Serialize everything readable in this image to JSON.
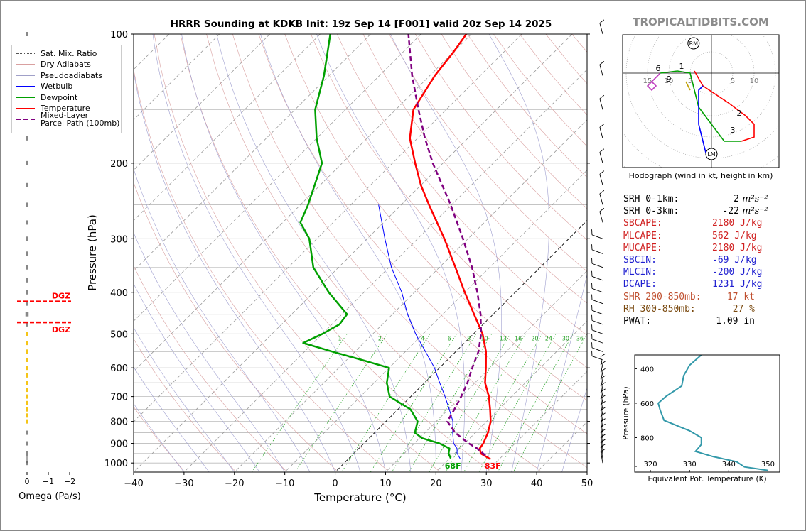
{
  "title": "HRRR Sounding at KDKB Init: 19z Sep 14 [F001] valid 20z Sep 14 2025",
  "credit": "TROPICALTIDBITS.COM",
  "legend": [
    {
      "label": "Sat. Mix. Ratio",
      "color": "#555555",
      "style": "dotted",
      "width": 1
    },
    {
      "label": "Dry Adiabats",
      "color": "#d9a0a0",
      "style": "solid",
      "width": 1
    },
    {
      "label": "Pseudoadiabats",
      "color": "#a0a0c8",
      "style": "solid",
      "width": 1
    },
    {
      "label": "Wetbulb",
      "color": "#0000ff",
      "style": "solid",
      "width": 1
    },
    {
      "label": "Dewpoint",
      "color": "#00a000",
      "style": "solid",
      "width": 2.5
    },
    {
      "label": "Temperature",
      "color": "#ff0000",
      "style": "solid",
      "width": 2.5
    },
    {
      "label": "Mixed-Layer\nParcel Path (100mb)",
      "color": "#800080",
      "style": "dashed",
      "width": 2.5
    }
  ],
  "chart_data": [
    {
      "type": "line",
      "name": "skewt",
      "title": "HRRR Sounding at KDKB Init: 19z Sep 14 [F001] valid 20z Sep 14 2025",
      "xlabel": "Temperature (°C)",
      "ylabel": "Pressure (hPa)",
      "xlim": [
        -40,
        50
      ],
      "ylim": [
        1050,
        100
      ],
      "y_scale": "log",
      "x_ticks": [
        -40,
        -30,
        -20,
        -10,
        0,
        10,
        20,
        30,
        40,
        50
      ],
      "y_ticks": [
        100,
        200,
        300,
        400,
        500,
        600,
        700,
        800,
        900,
        1000
      ],
      "series": [
        {
          "name": "Temperature",
          "color": "#ff0000",
          "width": 2.5,
          "p": [
            980,
            950,
            925,
            900,
            850,
            800,
            750,
            700,
            650,
            600,
            550,
            500,
            450,
            400,
            350,
            300,
            250,
            225,
            200,
            175,
            150,
            125,
            110,
            100
          ],
          "t": [
            28.3,
            25.2,
            24.0,
            23.7,
            22.5,
            20.8,
            18.3,
            15.5,
            12.0,
            9.2,
            6.0,
            1.8,
            -3.8,
            -10.0,
            -16.8,
            -24.7,
            -34.5,
            -40.0,
            -45.5,
            -51.5,
            -56.5,
            -59.0,
            -60.0,
            -61.0
          ]
        },
        {
          "name": "Dewpoint",
          "color": "#00a000",
          "width": 2.5,
          "p": [
            975,
            950,
            925,
            900,
            875,
            850,
            800,
            750,
            700,
            650,
            600,
            575,
            550,
            525,
            500,
            475,
            450,
            400,
            350,
            300,
            275,
            250,
            200,
            175,
            150,
            125,
            100
          ],
          "t": [
            20.2,
            18.8,
            18.0,
            15.0,
            10.5,
            8.0,
            6.3,
            2.5,
            -4.2,
            -7.5,
            -10.0,
            -17.0,
            -24.5,
            -32.0,
            -30.0,
            -28.5,
            -29.0,
            -37.0,
            -45.0,
            -51.5,
            -56.5,
            -58.5,
            -64.0,
            -70.0,
            -76.0,
            -81.0,
            -88.0
          ]
        },
        {
          "name": "Wetbulb",
          "color": "#0000ff",
          "width": 1,
          "p": [
            978,
            950,
            925,
            900,
            850,
            800,
            750,
            700,
            650,
            600,
            550,
            500,
            450,
            400,
            350,
            300,
            250
          ],
          "t": [
            22.2,
            20.5,
            19.5,
            17.8,
            15.5,
            13.3,
            10.2,
            6.8,
            3.0,
            -1.0,
            -6.0,
            -11.5,
            -17.0,
            -22.5,
            -29.5,
            -36.5,
            -44.5
          ]
        },
        {
          "name": "Mixed-Layer Parcel Path (100mb)",
          "color": "#800080",
          "width": 2.5,
          "dash": true,
          "p": [
            960,
            925,
            900,
            850,
            800,
            750,
            700,
            650,
            600,
            550,
            500,
            450,
            400,
            350,
            300,
            250,
            200,
            175,
            150,
            125,
            100
          ],
          "t": [
            26.5,
            23.5,
            20.8,
            16.0,
            12.2,
            11.2,
            10.0,
            8.5,
            6.5,
            4.5,
            1.5,
            -2.5,
            -7.5,
            -13.5,
            -21.0,
            -30.2,
            -42.0,
            -48.5,
            -55.5,
            -63.5,
            -72.5
          ]
        }
      ],
      "surface_labels": [
        {
          "text": "68F",
          "color": "#00a000"
        },
        {
          "text": "83F",
          "color": "#ff0000"
        }
      ],
      "mixing_ratio_labels": [
        "1",
        "2",
        "4",
        "6",
        "8",
        "10",
        "13",
        "16",
        "20",
        "24",
        "30",
        "36"
      ]
    },
    {
      "type": "line",
      "name": "hodograph",
      "xlabel": "Hodograph (wind in kt, height in km)",
      "ring_labels": [
        "15",
        "10",
        "5",
        "5",
        "10"
      ],
      "markers": [
        "RM",
        "LM"
      ],
      "height_labels": [
        "1",
        "2",
        "3",
        "6",
        "9"
      ],
      "segments": [
        {
          "color": "#ff0000",
          "points": [
            [
              -4,
              0.5
            ],
            [
              -2,
              -3
            ],
            [
              4,
              -7
            ],
            [
              8,
              -10
            ],
            [
              10,
              -12
            ],
            [
              10,
              -15
            ],
            [
              7,
              -16
            ]
          ]
        },
        {
          "color": "#00a000",
          "points": [
            [
              7,
              -16
            ],
            [
              3,
              -16
            ],
            [
              0,
              -12
            ],
            [
              -3,
              -8
            ],
            [
              -4,
              -4
            ],
            [
              -5,
              0
            ],
            [
              -8,
              0.5
            ],
            [
              -12,
              0
            ]
          ]
        },
        {
          "color": "#0000ff",
          "points": [
            [
              -2,
              -3
            ],
            [
              -3,
              -4
            ],
            [
              -3,
              -8
            ],
            [
              -3,
              -12
            ],
            [
              -2,
              -16
            ],
            [
              -1,
              -20
            ]
          ]
        },
        {
          "color": "#c040c0",
          "points": [
            [
              -12,
              0
            ],
            [
              -13,
              -1
            ],
            [
              -15,
              -3
            ],
            [
              -14,
              -4
            ],
            [
              -13,
              -3
            ],
            [
              -14,
              -2
            ]
          ]
        },
        {
          "color": "#c0a000",
          "points": [
            [
              -6,
              -2
            ],
            [
              -5,
              -4
            ]
          ]
        }
      ]
    },
    {
      "type": "line",
      "name": "theta-e",
      "xlabel": "Equivalent Pot. Temperature (K)",
      "ylabel": "Pressure (hPa)",
      "xlim": [
        316,
        353
      ],
      "ylim": [
        1000,
        320
      ],
      "x_ticks": [
        320,
        330,
        340,
        350
      ],
      "y_ticks": [
        400,
        600,
        800
      ],
      "series": [
        {
          "name": "theta-e",
          "color": "#3399aa",
          "p": [
            320,
            380,
            440,
            500,
            560,
            600,
            640,
            700,
            760,
            800,
            840,
            880,
            910,
            940,
            970,
            990
          ],
          "t": [
            333.0,
            330.0,
            328.5,
            328.0,
            324.0,
            322.0,
            322.5,
            323.5,
            330.0,
            333.0,
            333.0,
            331.5,
            336.0,
            342.0,
            344.0,
            350.0
          ]
        }
      ]
    },
    {
      "type": "bar",
      "name": "omega",
      "xlabel": "Omega (Pa/s)",
      "x_ticks": [
        "0",
        "−1",
        "−2"
      ],
      "xlim": [
        0.2,
        -2.5
      ],
      "levels_hpa": [
        100,
        150,
        175,
        200,
        225,
        250,
        275,
        300,
        325,
        350,
        375,
        400,
        425,
        450,
        475,
        500,
        525,
        550,
        575,
        600,
        625,
        650,
        675,
        700,
        725,
        750,
        775,
        800,
        850,
        900,
        950,
        1000
      ],
      "values": [
        -0.02,
        -0.05,
        -0.04,
        -0.08,
        -0.1,
        -0.1,
        -0.1,
        -0.1,
        -0.1,
        -0.1,
        -0.1,
        -0.1,
        -0.12,
        -0.15,
        -0.12,
        -0.05,
        -0.02,
        0.0,
        0.0,
        -0.02,
        -0.04,
        -0.06,
        -0.08,
        -0.1,
        -0.12,
        -0.12,
        -0.1,
        -0.05,
        0.0,
        0.0,
        0.0,
        0.0
      ],
      "dgz": [
        {
          "label": "DGZ",
          "p": 420
        },
        {
          "label": "DGZ",
          "p": 470
        }
      ]
    }
  ],
  "indices": [
    {
      "label": "SRH 0-1km:",
      "value": "2",
      "unit": "m²s⁻²",
      "color": "#000000"
    },
    {
      "label": "SRH 0-3km:",
      "value": "-22",
      "unit": "m²s⁻²",
      "color": "#000000"
    },
    {
      "label": "SBCAPE:",
      "value": "2180 J/kg",
      "unit": "",
      "color": "#d02020"
    },
    {
      "label": "MLCAPE:",
      "value": "562 J/kg",
      "unit": "",
      "color": "#d02020"
    },
    {
      "label": "MUCAPE:",
      "value": "2180 J/kg",
      "unit": "",
      "color": "#d02020"
    },
    {
      "label": "SBCIN:",
      "value": "-69 J/kg",
      "unit": "",
      "color": "#2020d0"
    },
    {
      "label": "MLCIN:",
      "value": "-200 J/kg",
      "unit": "",
      "color": "#2020d0"
    },
    {
      "label": "DCAPE:",
      "value": "1231 J/kg",
      "unit": "",
      "color": "#2020d0"
    },
    {
      "label": "SHR 200-850mb:",
      "value": "17 kt",
      "unit": "",
      "color": "#c05030"
    },
    {
      "label": "RH 300-850mb:",
      "value": "27 %",
      "unit": "",
      "color": "#7a4a10"
    },
    {
      "label": "PWAT:",
      "value": "1.09 in",
      "unit": "",
      "color": "#000000"
    }
  ]
}
